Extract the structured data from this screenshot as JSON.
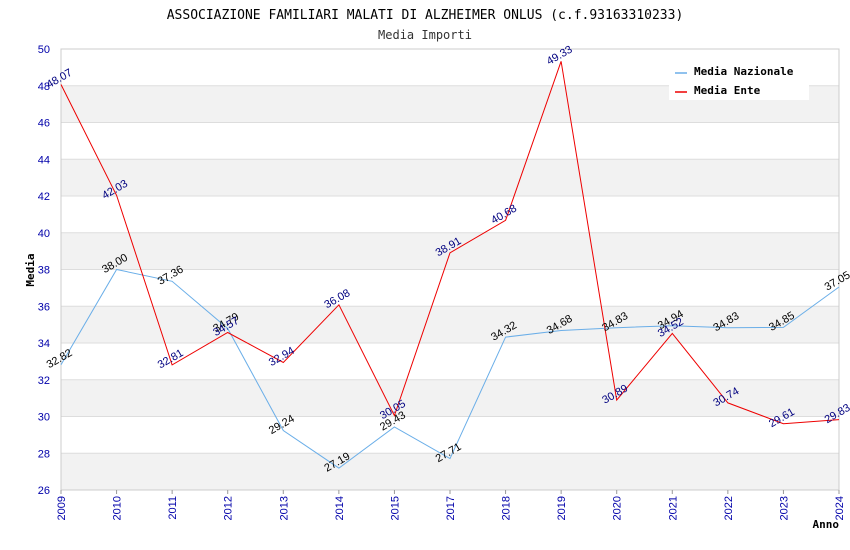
{
  "chart_data": {
    "type": "line",
    "title": "ASSOCIAZIONE FAMILIARI MALATI DI ALZHEIMER ONLUS (c.f.93163310233)",
    "subtitle": "Media Importi",
    "xlabel": "Anno",
    "ylabel": "Media",
    "categories": [
      "2009",
      "2010",
      "2011",
      "2012",
      "2013",
      "2014",
      "2015",
      "2017",
      "2018",
      "2019",
      "2020",
      "2021",
      "2022",
      "2023",
      "2024"
    ],
    "ylim": [
      26,
      50
    ],
    "yticks": [
      26,
      28,
      30,
      32,
      34,
      36,
      38,
      40,
      42,
      44,
      46,
      48,
      50
    ],
    "series": [
      {
        "name": "Media Nazionale",
        "color": "#6aaee8",
        "label_color": "#000000",
        "values": [
          32.82,
          38.0,
          37.36,
          34.79,
          29.24,
          27.19,
          29.43,
          27.71,
          34.32,
          34.68,
          34.83,
          34.94,
          34.83,
          34.85,
          37.05
        ]
      },
      {
        "name": "Media Ente",
        "color": "#ee0000",
        "label_color": "#000080",
        "values": [
          48.07,
          42.03,
          32.81,
          34.57,
          32.94,
          36.08,
          30.05,
          38.91,
          40.68,
          49.33,
          30.89,
          34.52,
          30.74,
          29.61,
          29.83
        ]
      }
    ],
    "legend_position": "top-right",
    "grid": true
  }
}
